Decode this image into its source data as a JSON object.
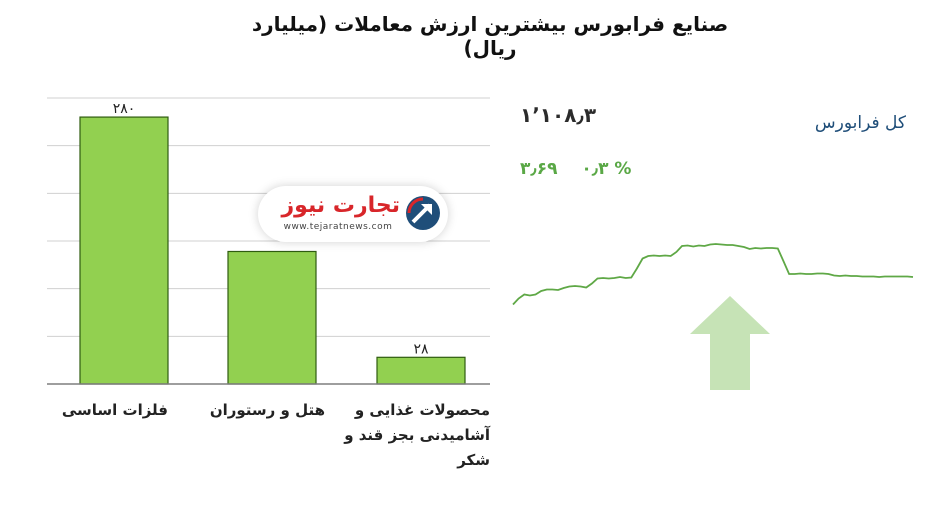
{
  "title": "صنایع فرابورس بیشترین ارزش معاملات  (میلیارد ریال)",
  "colors": {
    "bar_fill": "#92d050",
    "bar_stroke": "#2f5c10",
    "grid": "#d0d0d0",
    "axis": "#7f7f7f",
    "spark_line": "#5fa846",
    "arrow_fill": "#c6e3b6",
    "positive_change": "#5aa846",
    "index_name": "#1f4e79",
    "watermark_red": "#d8262a",
    "watermark_blue": "#1f4e79"
  },
  "chart_data": [
    {
      "type": "bar",
      "categories": [
        "فلزات اساسی",
        "هتل و رستوران",
        "محصولات غذایی و آشامیدنی بجز قند و شکر"
      ],
      "category_label_lines": [
        [
          "فلزات اساسی"
        ],
        [
          "هتل و رستوران"
        ],
        [
          "محصولات غذایی و",
          "آشامیدنی بجز قند و",
          "شکر"
        ]
      ],
      "values": [
        280,
        139,
        28
      ],
      "data_labels": [
        "۲۸۰",
        "",
        "۲۸"
      ],
      "ylim": [
        0,
        300
      ],
      "gridlines": [
        0,
        50,
        100,
        150,
        200,
        250,
        300
      ],
      "grid": true
    },
    {
      "type": "line",
      "x": [
        0,
        1,
        2,
        3,
        4,
        5,
        6,
        7,
        8,
        9,
        10,
        11,
        12,
        13,
        14,
        15,
        16,
        17,
        18,
        19,
        20,
        21,
        22,
        23,
        24,
        25,
        26,
        27,
        28,
        29,
        30,
        31,
        32,
        33,
        34,
        35,
        36,
        37,
        38,
        39,
        40,
        41,
        42,
        43,
        44,
        45,
        46,
        47,
        48,
        49,
        50,
        51,
        52,
        53,
        54,
        55,
        56,
        57,
        58,
        59,
        60,
        61,
        62,
        63,
        64,
        65,
        66,
        67,
        68,
        69,
        70,
        71
      ],
      "values": [
        1095.1,
        1096.3,
        1097.1,
        1096.9,
        1097.1,
        1097.8,
        1098.1,
        1098.1,
        1098.0,
        1098.4,
        1098.7,
        1098.8,
        1098.7,
        1098.5,
        1099.3,
        1100.3,
        1100.4,
        1100.3,
        1100.4,
        1100.6,
        1100.4,
        1100.5,
        1102.3,
        1104.3,
        1104.8,
        1104.9,
        1104.8,
        1104.9,
        1104.8,
        1105.6,
        1106.8,
        1106.9,
        1106.7,
        1106.9,
        1106.8,
        1107.1,
        1107.2,
        1107.1,
        1107.0,
        1107.0,
        1106.8,
        1106.6,
        1106.2,
        1106.4,
        1106.3,
        1106.4,
        1106.4,
        1106.3,
        1103.8,
        1101.2,
        1101.2,
        1101.3,
        1101.2,
        1101.2,
        1101.3,
        1101.3,
        1101.2,
        1100.9,
        1100.8,
        1100.9,
        1100.8,
        1100.8,
        1100.7,
        1100.7,
        1100.7,
        1100.6,
        1100.7,
        1100.7,
        1100.7,
        1100.7,
        1100.7,
        1100.6
      ],
      "ylim": [
        1090,
        1111
      ],
      "grid": false
    }
  ],
  "watermark": {
    "brand": "تجارت نیوز",
    "url": "www.tejaratnews.com"
  },
  "index": {
    "name": "کل فرابورس",
    "value": "۱٬۱۰۸٫۳",
    "change": "۳٫۶۹",
    "percent": "۰٫۳ %",
    "direction": "up"
  }
}
